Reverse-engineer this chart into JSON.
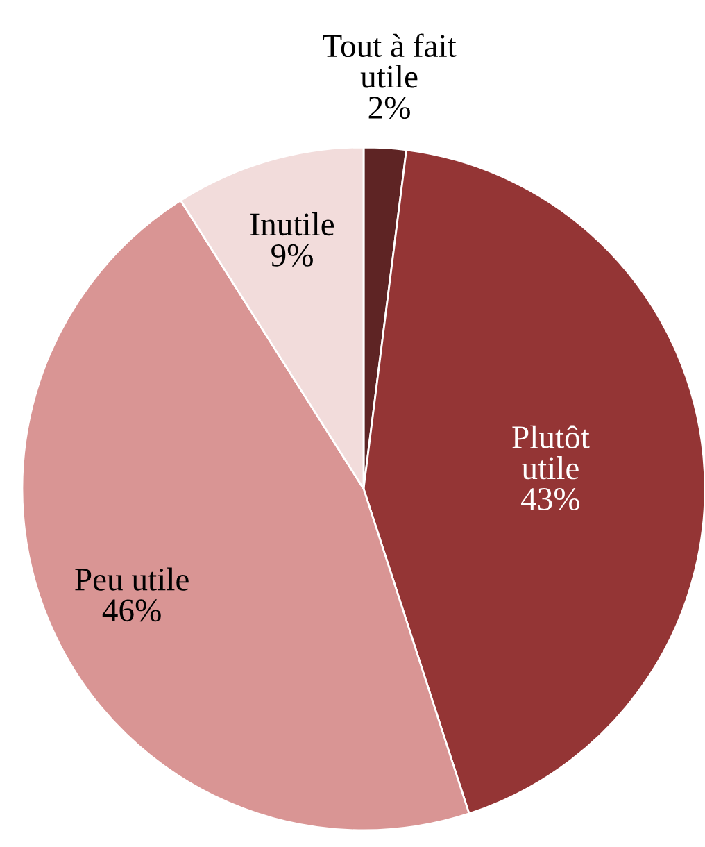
{
  "chart_data": {
    "type": "pie",
    "categories": [
      "Tout à fait\nutile",
      "Plutôt\nutile",
      "Peu utile",
      "Inutile"
    ],
    "values": [
      2,
      43,
      46,
      9
    ],
    "value_labels": [
      "2%",
      "43%",
      "46%",
      "9%"
    ],
    "colors": [
      "#5e2424",
      "#943535",
      "#d99594",
      "#f2dcdb"
    ]
  }
}
